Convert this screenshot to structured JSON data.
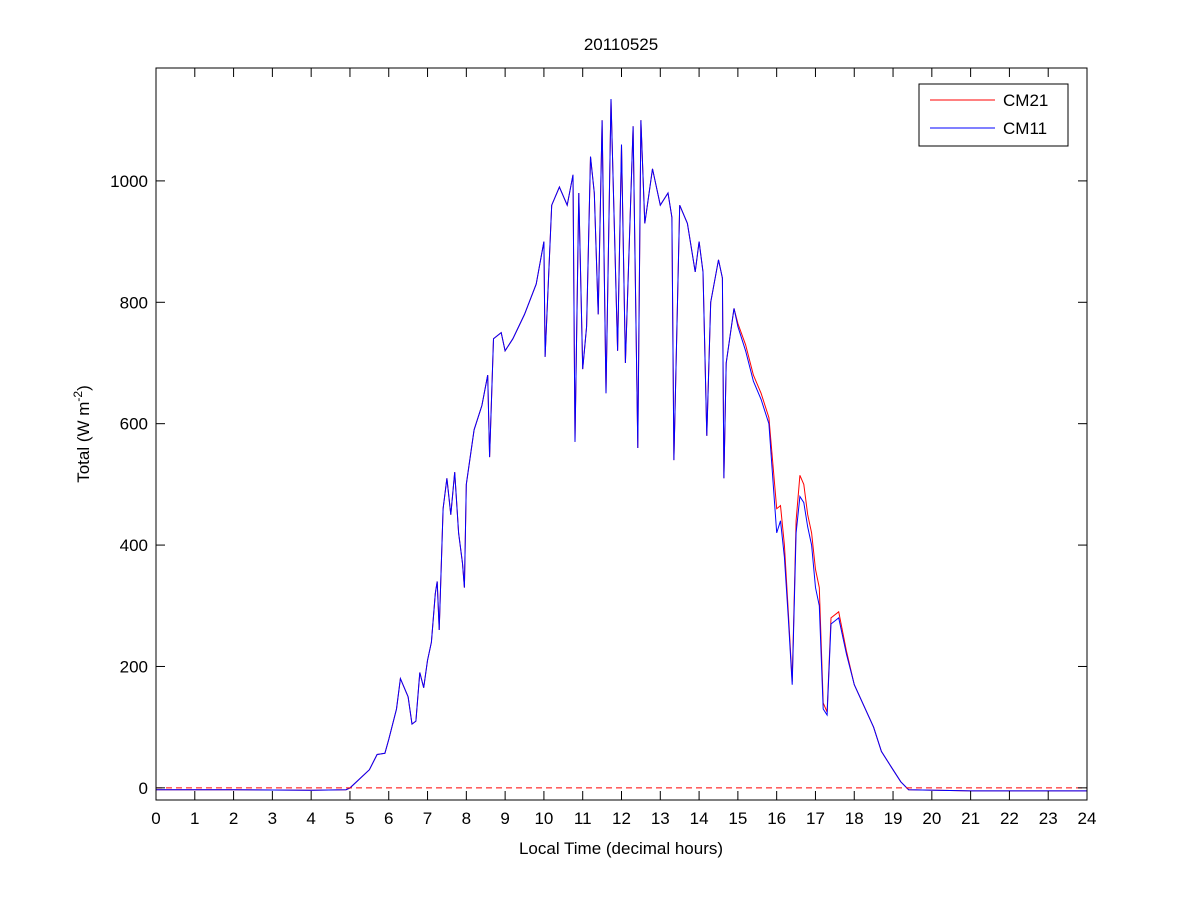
{
  "chart_data": {
    "type": "line",
    "title": "20110525",
    "xlabel": "Local Time (decimal hours)",
    "ylabel": {
      "text": "Total (W m",
      "superscript": "-2",
      "suffix": ")"
    },
    "xlim": [
      0,
      24
    ],
    "ylim": [
      -20,
      1186
    ],
    "xticks": [
      0,
      1,
      2,
      3,
      4,
      5,
      6,
      7,
      8,
      9,
      10,
      11,
      12,
      13,
      14,
      15,
      16,
      17,
      18,
      19,
      20,
      21,
      22,
      23,
      24
    ],
    "yticks": [
      0,
      200,
      400,
      600,
      800,
      1000
    ],
    "grid": false,
    "legend_position": "top-right",
    "reference_line": {
      "y": 0,
      "style": "dashed",
      "color": "#ff0000"
    },
    "series": [
      {
        "name": "CM21",
        "color": "#ff0000",
        "points": [
          [
            0,
            -3
          ],
          [
            2,
            -3
          ],
          [
            4,
            -4
          ],
          [
            4.9,
            -3
          ],
          [
            5,
            0
          ],
          [
            5.5,
            30
          ],
          [
            5.7,
            55
          ],
          [
            5.9,
            57
          ],
          [
            6,
            80
          ],
          [
            6.2,
            130
          ],
          [
            6.3,
            180
          ],
          [
            6.5,
            150
          ],
          [
            6.6,
            105
          ],
          [
            6.7,
            110
          ],
          [
            6.8,
            190
          ],
          [
            6.9,
            165
          ],
          [
            7,
            210
          ],
          [
            7.1,
            240
          ],
          [
            7.2,
            320
          ],
          [
            7.25,
            340
          ],
          [
            7.3,
            260
          ],
          [
            7.4,
            460
          ],
          [
            7.5,
            510
          ],
          [
            7.6,
            450
          ],
          [
            7.7,
            520
          ],
          [
            7.8,
            420
          ],
          [
            7.9,
            370
          ],
          [
            7.95,
            330
          ],
          [
            8,
            500
          ],
          [
            8.2,
            590
          ],
          [
            8.4,
            630
          ],
          [
            8.55,
            680
          ],
          [
            8.6,
            545
          ],
          [
            8.7,
            740
          ],
          [
            8.9,
            750
          ],
          [
            9,
            720
          ],
          [
            9.2,
            740
          ],
          [
            9.5,
            780
          ],
          [
            9.8,
            830
          ],
          [
            10,
            900
          ],
          [
            10.03,
            710
          ],
          [
            10.2,
            960
          ],
          [
            10.4,
            990
          ],
          [
            10.6,
            960
          ],
          [
            10.75,
            1010
          ],
          [
            10.8,
            570
          ],
          [
            10.9,
            980
          ],
          [
            11,
            690
          ],
          [
            11.1,
            760
          ],
          [
            11.2,
            1040
          ],
          [
            11.3,
            980
          ],
          [
            11.4,
            780
          ],
          [
            11.5,
            1100
          ],
          [
            11.6,
            650
          ],
          [
            11.73,
            1135
          ],
          [
            11.9,
            720
          ],
          [
            12,
            1060
          ],
          [
            12.1,
            700
          ],
          [
            12.3,
            1090
          ],
          [
            12.42,
            560
          ],
          [
            12.5,
            1100
          ],
          [
            12.6,
            930
          ],
          [
            12.8,
            1020
          ],
          [
            13,
            960
          ],
          [
            13.2,
            980
          ],
          [
            13.3,
            940
          ],
          [
            13.35,
            540
          ],
          [
            13.5,
            960
          ],
          [
            13.7,
            930
          ],
          [
            13.9,
            850
          ],
          [
            14,
            900
          ],
          [
            14.1,
            850
          ],
          [
            14.2,
            580
          ],
          [
            14.3,
            800
          ],
          [
            14.5,
            870
          ],
          [
            14.6,
            840
          ],
          [
            14.64,
            510
          ],
          [
            14.7,
            700
          ],
          [
            14.9,
            790
          ],
          [
            15,
            765
          ],
          [
            15.2,
            730
          ],
          [
            15.4,
            680
          ],
          [
            15.6,
            650
          ],
          [
            15.8,
            610
          ],
          [
            16,
            460
          ],
          [
            16.1,
            465
          ],
          [
            16.2,
            400
          ],
          [
            16.3,
            290
          ],
          [
            16.4,
            175
          ],
          [
            16.5,
            440
          ],
          [
            16.6,
            515
          ],
          [
            16.7,
            500
          ],
          [
            16.8,
            450
          ],
          [
            16.9,
            420
          ],
          [
            17,
            360
          ],
          [
            17.1,
            330
          ],
          [
            17.2,
            140
          ],
          [
            17.3,
            125
          ],
          [
            17.4,
            280
          ],
          [
            17.6,
            290
          ],
          [
            17.8,
            225
          ],
          [
            18,
            170
          ],
          [
            18.5,
            100
          ],
          [
            18.7,
            60
          ],
          [
            19,
            30
          ],
          [
            19.2,
            10
          ],
          [
            19.4,
            -3
          ],
          [
            21,
            -5
          ],
          [
            24,
            -5
          ]
        ]
      },
      {
        "name": "CM11",
        "color": "#0000ff",
        "points": [
          [
            0,
            -3
          ],
          [
            2,
            -3
          ],
          [
            4,
            -4
          ],
          [
            4.9,
            -3
          ],
          [
            5,
            0
          ],
          [
            5.5,
            30
          ],
          [
            5.7,
            55
          ],
          [
            5.9,
            57
          ],
          [
            6,
            80
          ],
          [
            6.2,
            130
          ],
          [
            6.3,
            180
          ],
          [
            6.5,
            150
          ],
          [
            6.6,
            105
          ],
          [
            6.7,
            110
          ],
          [
            6.8,
            190
          ],
          [
            6.9,
            165
          ],
          [
            7,
            210
          ],
          [
            7.1,
            240
          ],
          [
            7.2,
            320
          ],
          [
            7.25,
            340
          ],
          [
            7.3,
            260
          ],
          [
            7.4,
            460
          ],
          [
            7.5,
            510
          ],
          [
            7.6,
            450
          ],
          [
            7.7,
            520
          ],
          [
            7.8,
            420
          ],
          [
            7.9,
            370
          ],
          [
            7.95,
            330
          ],
          [
            8,
            500
          ],
          [
            8.2,
            590
          ],
          [
            8.4,
            630
          ],
          [
            8.55,
            680
          ],
          [
            8.6,
            545
          ],
          [
            8.7,
            740
          ],
          [
            8.9,
            750
          ],
          [
            9,
            720
          ],
          [
            9.2,
            740
          ],
          [
            9.5,
            780
          ],
          [
            9.8,
            830
          ],
          [
            10,
            900
          ],
          [
            10.03,
            710
          ],
          [
            10.2,
            960
          ],
          [
            10.4,
            990
          ],
          [
            10.6,
            960
          ],
          [
            10.75,
            1010
          ],
          [
            10.8,
            570
          ],
          [
            10.9,
            980
          ],
          [
            11,
            690
          ],
          [
            11.1,
            760
          ],
          [
            11.2,
            1040
          ],
          [
            11.3,
            980
          ],
          [
            11.4,
            780
          ],
          [
            11.5,
            1100
          ],
          [
            11.6,
            650
          ],
          [
            11.73,
            1135
          ],
          [
            11.9,
            720
          ],
          [
            12,
            1060
          ],
          [
            12.1,
            700
          ],
          [
            12.3,
            1090
          ],
          [
            12.42,
            560
          ],
          [
            12.5,
            1100
          ],
          [
            12.6,
            930
          ],
          [
            12.8,
            1020
          ],
          [
            13,
            960
          ],
          [
            13.2,
            980
          ],
          [
            13.3,
            940
          ],
          [
            13.35,
            540
          ],
          [
            13.5,
            960
          ],
          [
            13.7,
            930
          ],
          [
            13.9,
            850
          ],
          [
            14,
            900
          ],
          [
            14.1,
            850
          ],
          [
            14.2,
            580
          ],
          [
            14.3,
            800
          ],
          [
            14.5,
            870
          ],
          [
            14.6,
            840
          ],
          [
            14.64,
            510
          ],
          [
            14.7,
            700
          ],
          [
            14.9,
            790
          ],
          [
            15,
            760
          ],
          [
            15.2,
            720
          ],
          [
            15.4,
            670
          ],
          [
            15.6,
            640
          ],
          [
            15.8,
            600
          ],
          [
            16,
            420
          ],
          [
            16.1,
            440
          ],
          [
            16.2,
            380
          ],
          [
            16.3,
            280
          ],
          [
            16.4,
            170
          ],
          [
            16.5,
            420
          ],
          [
            16.6,
            480
          ],
          [
            16.7,
            470
          ],
          [
            16.8,
            430
          ],
          [
            16.9,
            400
          ],
          [
            17,
            330
          ],
          [
            17.1,
            300
          ],
          [
            17.2,
            130
          ],
          [
            17.3,
            120
          ],
          [
            17.4,
            270
          ],
          [
            17.6,
            280
          ],
          [
            17.8,
            220
          ],
          [
            18,
            170
          ],
          [
            18.5,
            100
          ],
          [
            18.7,
            60
          ],
          [
            19,
            30
          ],
          [
            19.2,
            10
          ],
          [
            19.4,
            -3
          ],
          [
            21,
            -5
          ],
          [
            24,
            -5
          ]
        ]
      }
    ]
  }
}
